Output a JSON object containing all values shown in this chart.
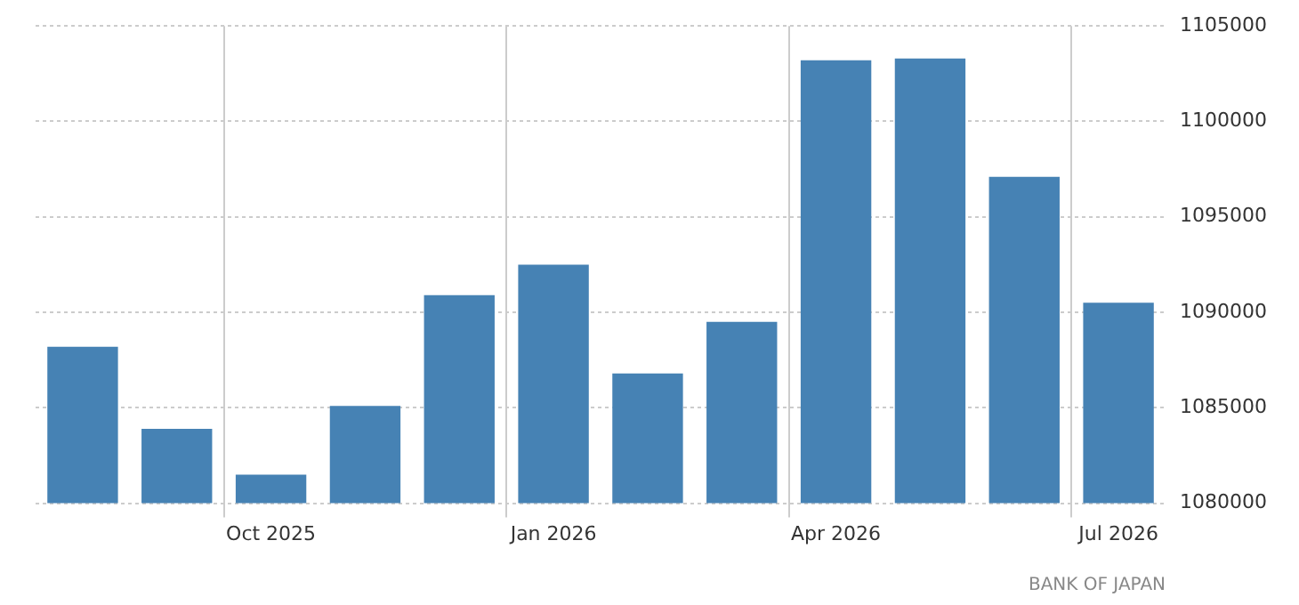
{
  "chart_data": {
    "type": "bar",
    "categories": [
      null,
      null,
      "Oct 2025",
      null,
      null,
      "Jan 2026",
      null,
      null,
      "Apr 2026",
      null,
      null,
      "Jul 2026"
    ],
    "values": [
      1088200,
      1083900,
      1081500,
      1085100,
      1090900,
      1092500,
      1086800,
      1089500,
      1103200,
      1103300,
      1097100,
      1090500
    ],
    "color": "#4682b4",
    "ylim": [
      1080000,
      1105000
    ],
    "yticks": [
      1080000,
      1085000,
      1090000,
      1095000,
      1100000,
      1105000
    ],
    "grid": true,
    "annotations": [
      "BANK OF JAPAN"
    ]
  }
}
